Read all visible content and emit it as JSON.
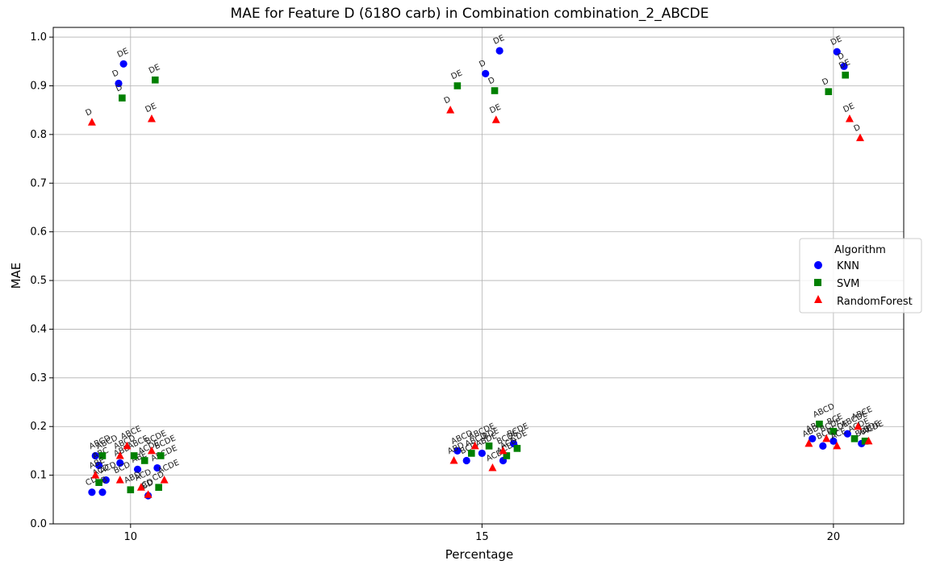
{
  "chart_data": {
    "type": "scatter",
    "title": "MAE for Feature D (δ18O carb) in Combination combination_2_ABCDE",
    "xlabel": "Percentage",
    "ylabel": "MAE",
    "xlim": [
      8.9,
      21.0
    ],
    "ylim": [
      0.0,
      1.02
    ],
    "x_ticks": [
      "10",
      "15",
      "20"
    ],
    "y_ticks": [
      "0.0",
      "0.1",
      "0.2",
      "0.3",
      "0.4",
      "0.5",
      "0.6",
      "0.7",
      "0.8",
      "0.9",
      "1.0"
    ],
    "grid": true,
    "legend": {
      "title": "Algorithm",
      "placement": "center-right"
    },
    "series": [
      {
        "name": "KNN",
        "marker": "circle",
        "color": "#0000ff",
        "points": [
          {
            "x": 9.83,
            "y": 0.905,
            "label": "D"
          },
          {
            "x": 9.9,
            "y": 0.945,
            "label": "DE"
          },
          {
            "x": 9.5,
            "y": 0.14,
            "label": "ABCD"
          },
          {
            "x": 9.55,
            "y": 0.12,
            "label": "ABC"
          },
          {
            "x": 9.65,
            "y": 0.09,
            "label": "ACD"
          },
          {
            "x": 9.45,
            "y": 0.065,
            "label": "CD"
          },
          {
            "x": 9.6,
            "y": 0.065,
            "label": "AB"
          },
          {
            "x": 9.85,
            "y": 0.125,
            "label": "ABD"
          },
          {
            "x": 10.1,
            "y": 0.112,
            "label": "ABE"
          },
          {
            "x": 10.25,
            "y": 0.058,
            "label": "BD"
          },
          {
            "x": 10.38,
            "y": 0.115,
            "label": "ABCDE"
          },
          {
            "x": 15.05,
            "y": 0.925,
            "label": "D"
          },
          {
            "x": 15.25,
            "y": 0.972,
            "label": "DE"
          },
          {
            "x": 14.65,
            "y": 0.15,
            "label": "ABCD"
          },
          {
            "x": 14.78,
            "y": 0.13,
            "label": "BCD"
          },
          {
            "x": 15.0,
            "y": 0.145,
            "label": "ABDE"
          },
          {
            "x": 15.3,
            "y": 0.13,
            "label": "ACDE"
          },
          {
            "x": 15.45,
            "y": 0.165,
            "label": "BCDE"
          },
          {
            "x": 20.05,
            "y": 0.97,
            "label": "DE"
          },
          {
            "x": 20.15,
            "y": 0.94,
            "label": "D"
          },
          {
            "x": 19.7,
            "y": 0.175,
            "label": "ABD"
          },
          {
            "x": 19.85,
            "y": 0.16,
            "label": "BCD"
          },
          {
            "x": 20.0,
            "y": 0.17,
            "label": "ACDE"
          },
          {
            "x": 20.2,
            "y": 0.185,
            "label": "ABCDE"
          },
          {
            "x": 20.4,
            "y": 0.165,
            "label": "BDE"
          }
        ]
      },
      {
        "name": "SVM",
        "marker": "square",
        "color": "#008000",
        "points": [
          {
            "x": 9.88,
            "y": 0.875,
            "label": "D"
          },
          {
            "x": 10.35,
            "y": 0.912,
            "label": "DE"
          },
          {
            "x": 9.6,
            "y": 0.14,
            "label": "ABCD"
          },
          {
            "x": 9.55,
            "y": 0.085,
            "label": "ACD"
          },
          {
            "x": 10.0,
            "y": 0.07,
            "label": "ABD"
          },
          {
            "x": 10.05,
            "y": 0.14,
            "label": "ABCE"
          },
          {
            "x": 10.2,
            "y": 0.13,
            "label": "ACDE"
          },
          {
            "x": 10.4,
            "y": 0.075,
            "label": "CD"
          },
          {
            "x": 10.43,
            "y": 0.14,
            "label": "BCDE"
          },
          {
            "x": 14.65,
            "y": 0.9,
            "label": "DE"
          },
          {
            "x": 15.18,
            "y": 0.89,
            "label": "D"
          },
          {
            "x": 14.85,
            "y": 0.145,
            "label": "ABCD"
          },
          {
            "x": 15.1,
            "y": 0.16,
            "label": "BDE"
          },
          {
            "x": 15.35,
            "y": 0.14,
            "label": "ACD"
          },
          {
            "x": 15.5,
            "y": 0.155,
            "label": "CDE"
          },
          {
            "x": 19.93,
            "y": 0.888,
            "label": "D"
          },
          {
            "x": 20.17,
            "y": 0.922,
            "label": "DE"
          },
          {
            "x": 19.8,
            "y": 0.205,
            "label": "ABCD"
          },
          {
            "x": 20.0,
            "y": 0.19,
            "label": "BCE"
          },
          {
            "x": 20.3,
            "y": 0.175,
            "label": "ACDE"
          },
          {
            "x": 20.45,
            "y": 0.17,
            "label": "ABDE"
          }
        ]
      },
      {
        "name": "RandomForest",
        "marker": "triangle",
        "color": "#ff0000",
        "points": [
          {
            "x": 9.45,
            "y": 0.825,
            "label": "D"
          },
          {
            "x": 10.3,
            "y": 0.832,
            "label": "DE"
          },
          {
            "x": 9.5,
            "y": 0.1,
            "label": "ABE"
          },
          {
            "x": 9.85,
            "y": 0.14,
            "label": "ABCD"
          },
          {
            "x": 9.85,
            "y": 0.09,
            "label": "BCD"
          },
          {
            "x": 9.95,
            "y": 0.16,
            "label": "ABCE"
          },
          {
            "x": 10.15,
            "y": 0.075,
            "label": "ACD"
          },
          {
            "x": 10.25,
            "y": 0.06,
            "label": "CD"
          },
          {
            "x": 10.3,
            "y": 0.15,
            "label": "BCDE"
          },
          {
            "x": 10.48,
            "y": 0.09,
            "label": "ACDE"
          },
          {
            "x": 14.55,
            "y": 0.85,
            "label": "D"
          },
          {
            "x": 15.2,
            "y": 0.83,
            "label": "DE"
          },
          {
            "x": 14.6,
            "y": 0.13,
            "label": "ABD"
          },
          {
            "x": 14.9,
            "y": 0.16,
            "label": "ABCDE"
          },
          {
            "x": 15.15,
            "y": 0.115,
            "label": "ACD"
          },
          {
            "x": 15.3,
            "y": 0.15,
            "label": "BCDE"
          },
          {
            "x": 20.23,
            "y": 0.832,
            "label": "DE"
          },
          {
            "x": 20.38,
            "y": 0.793,
            "label": "D"
          },
          {
            "x": 19.65,
            "y": 0.165,
            "label": "ABD"
          },
          {
            "x": 19.9,
            "y": 0.175,
            "label": "BCDE"
          },
          {
            "x": 20.05,
            "y": 0.16,
            "label": "ACE"
          },
          {
            "x": 20.35,
            "y": 0.2,
            "label": "ABCE"
          },
          {
            "x": 20.5,
            "y": 0.17,
            "label": "ACDE"
          }
        ]
      }
    ]
  }
}
